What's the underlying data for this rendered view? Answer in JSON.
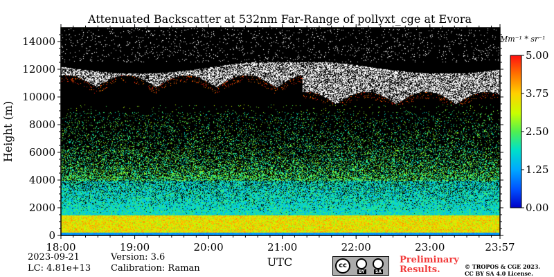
{
  "chart_data": {
    "type": "heatmap",
    "title": "Attenuated Backscatter at 532nm Far-Range of pollyxt_cge at Evora",
    "xlabel": "UTC",
    "ylabel": "Height (m)",
    "x_ticks": [
      "18:00",
      "19:00",
      "20:00",
      "21:00",
      "22:00",
      "23:00",
      "23:57"
    ],
    "x_range_hours": [
      18.0,
      23.95
    ],
    "y_ticks": [
      0,
      2000,
      4000,
      6000,
      8000,
      10000,
      12000,
      14000
    ],
    "y_range": [
      0,
      15000
    ],
    "colorbar": {
      "unit_label": "Mm⁻¹ * sr⁻¹",
      "ticks": [
        "0.00",
        "1.25",
        "2.50",
        "3.75",
        "5.00"
      ],
      "range": [
        0.0,
        5.0
      ]
    },
    "features": [
      {
        "name": "boundary layer aerosol",
        "height_range_m": [
          0,
          1500
        ],
        "value_range": [
          2.5,
          4.5
        ]
      },
      {
        "name": "cirrus cloud",
        "height_range_m": [
          9500,
          12500
        ],
        "time_range_hours": [
          18.0,
          23.95
        ],
        "value": "saturated"
      }
    ]
  },
  "footer": {
    "date": "2023-09-21",
    "lc": "LC: 4.81e+13",
    "version": "Version: 3.6",
    "calibration": "Calibration: Raman",
    "prelim_line1": "Preliminary",
    "prelim_line2": "Results.",
    "copyright_line1": "© TROPOS & CGE 2023.",
    "copyright_line2": "CC BY SA 4.0 License.",
    "cc_by": "BY",
    "cc_sa": "SA",
    "cc_mark": "cc"
  }
}
